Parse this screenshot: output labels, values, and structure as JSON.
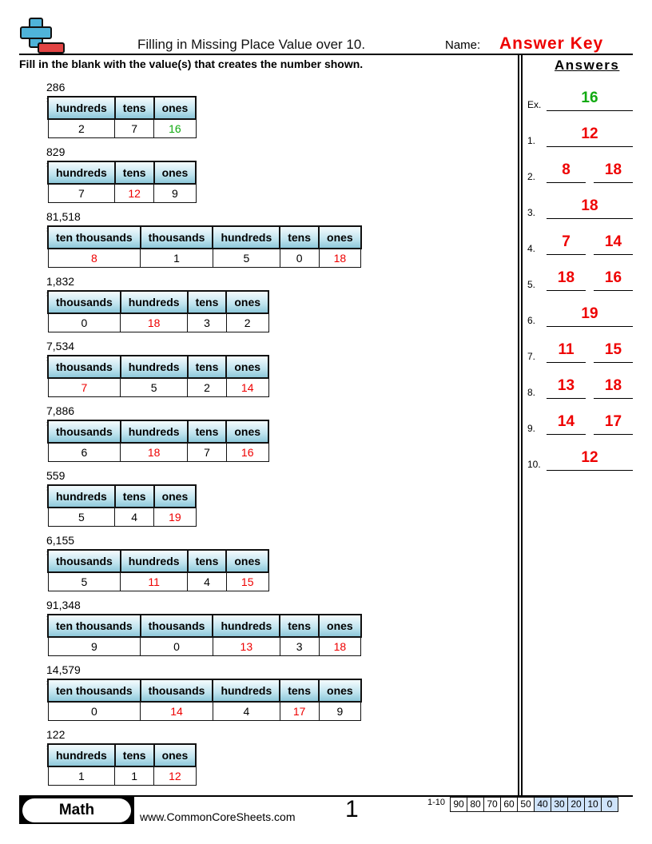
{
  "header": {
    "title": "Filling in Missing Place Value over 10.",
    "name_label": "Name:",
    "name_value": "Answer Key"
  },
  "instructions": "Fill in the blank with the value(s) that creates the number shown.",
  "answers_title": "Answers",
  "problems": [
    {
      "label": "Ex)",
      "number": "286 =",
      "headers": [
        "hundreds",
        "tens",
        "ones"
      ],
      "cells": [
        {
          "v": "2"
        },
        {
          "v": "7"
        },
        {
          "v": "16",
          "ans": true
        }
      ]
    },
    {
      "label": "1)",
      "number": "829 =",
      "headers": [
        "hundreds",
        "tens",
        "ones"
      ],
      "cells": [
        {
          "v": "7"
        },
        {
          "v": "12",
          "ans": true
        },
        {
          "v": "9"
        }
      ]
    },
    {
      "label": "2)",
      "number": "81,518 =",
      "headers": [
        "ten thousands",
        "thousands",
        "hundreds",
        "tens",
        "ones"
      ],
      "cells": [
        {
          "v": "8",
          "ans": true
        },
        {
          "v": "1"
        },
        {
          "v": "5"
        },
        {
          "v": "0"
        },
        {
          "v": "18",
          "ans": true
        }
      ]
    },
    {
      "label": "3)",
      "number": "1,832 =",
      "headers": [
        "thousands",
        "hundreds",
        "tens",
        "ones"
      ],
      "cells": [
        {
          "v": "0"
        },
        {
          "v": "18",
          "ans": true
        },
        {
          "v": "3"
        },
        {
          "v": "2"
        }
      ]
    },
    {
      "label": "4)",
      "number": "7,534 =",
      "headers": [
        "thousands",
        "hundreds",
        "tens",
        "ones"
      ],
      "cells": [
        {
          "v": "7",
          "ans": true
        },
        {
          "v": "5"
        },
        {
          "v": "2"
        },
        {
          "v": "14",
          "ans": true
        }
      ]
    },
    {
      "label": "5)",
      "number": "7,886 =",
      "headers": [
        "thousands",
        "hundreds",
        "tens",
        "ones"
      ],
      "cells": [
        {
          "v": "6"
        },
        {
          "v": "18",
          "ans": true
        },
        {
          "v": "7"
        },
        {
          "v": "16",
          "ans": true
        }
      ]
    },
    {
      "label": "6)",
      "number": "559 =",
      "headers": [
        "hundreds",
        "tens",
        "ones"
      ],
      "cells": [
        {
          "v": "5"
        },
        {
          "v": "4"
        },
        {
          "v": "19",
          "ans": true
        }
      ]
    },
    {
      "label": "7)",
      "number": "6,155 =",
      "headers": [
        "thousands",
        "hundreds",
        "tens",
        "ones"
      ],
      "cells": [
        {
          "v": "5"
        },
        {
          "v": "11",
          "ans": true
        },
        {
          "v": "4"
        },
        {
          "v": "15",
          "ans": true
        }
      ]
    },
    {
      "label": "8)",
      "number": "91,348 =",
      "headers": [
        "ten thousands",
        "thousands",
        "hundreds",
        "tens",
        "ones"
      ],
      "cells": [
        {
          "v": "9"
        },
        {
          "v": "0"
        },
        {
          "v": "13",
          "ans": true
        },
        {
          "v": "3"
        },
        {
          "v": "18",
          "ans": true
        }
      ]
    },
    {
      "label": "9)",
      "number": "14,579 =",
      "headers": [
        "ten thousands",
        "thousands",
        "hundreds",
        "tens",
        "ones"
      ],
      "cells": [
        {
          "v": "0"
        },
        {
          "v": "14",
          "ans": true
        },
        {
          "v": "4"
        },
        {
          "v": "17",
          "ans": true
        },
        {
          "v": "9"
        }
      ]
    },
    {
      "label": "10)",
      "number": "122 =",
      "headers": [
        "hundreds",
        "tens",
        "ones"
      ],
      "cells": [
        {
          "v": "1"
        },
        {
          "v": "1"
        },
        {
          "v": "12",
          "ans": true
        }
      ]
    }
  ],
  "answers": [
    {
      "label": "Ex.",
      "values": [
        "16"
      ]
    },
    {
      "label": "1.",
      "values": [
        "12"
      ]
    },
    {
      "label": "2.",
      "values": [
        "8",
        "18"
      ]
    },
    {
      "label": "3.",
      "values": [
        "18"
      ]
    },
    {
      "label": "4.",
      "values": [
        "7",
        "14"
      ]
    },
    {
      "label": "5.",
      "values": [
        "18",
        "16"
      ]
    },
    {
      "label": "6.",
      "values": [
        "19"
      ]
    },
    {
      "label": "7.",
      "values": [
        "11",
        "15"
      ]
    },
    {
      "label": "8.",
      "values": [
        "13",
        "18"
      ]
    },
    {
      "label": "9.",
      "values": [
        "14",
        "17"
      ]
    },
    {
      "label": "10.",
      "values": [
        "12"
      ]
    }
  ],
  "footer": {
    "subject": "Math",
    "website": "www.CommonCoreSheets.com",
    "page": "1",
    "range": "1-10",
    "scores": [
      "90",
      "80",
      "70",
      "60",
      "50",
      "40",
      "30",
      "20",
      "10",
      "0"
    ],
    "score_highlight_from": 5
  },
  "colors": {
    "answer": "#ee0000",
    "example": "#11aa11",
    "header_gradient": "#8ec8da",
    "score_highlight": "#cfe3fb"
  }
}
